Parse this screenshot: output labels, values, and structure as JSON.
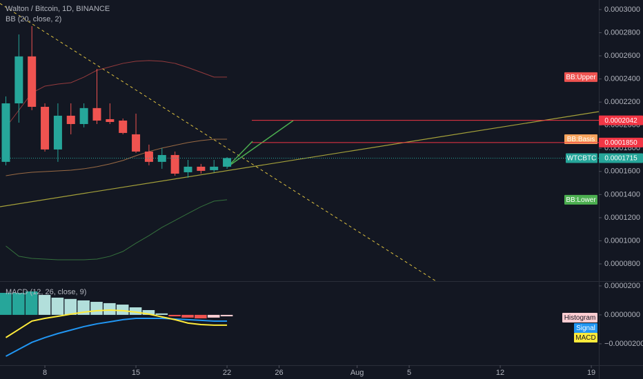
{
  "header": {
    "title": "Walton / Bitcoin, 1D, BINANCE",
    "bb_label": "BB (20, close, 2)",
    "macd_label": "MACD (12, 26, close, 9)"
  },
  "chart_data": [
    {
      "type": "candlestick",
      "x": [
        5,
        6,
        7,
        8,
        9,
        10,
        11,
        12,
        13,
        14,
        15,
        16,
        17,
        18,
        19,
        20,
        21,
        22
      ],
      "open": [
        0.0001683,
        0.0002189,
        0.0002595,
        0.0002159,
        0.000179,
        0.0002082,
        0.000201,
        0.0002148,
        0.0002052,
        0.000204,
        0.0001921,
        0.0001772,
        0.0001683,
        0.0001742,
        0.0001593,
        0.0001641,
        0.0001611,
        0.0001641
      ],
      "high": [
        0.0002249,
        0.0002785,
        0.0002857,
        0.0002189,
        0.0002189,
        0.0002189,
        0.0002189,
        0.0002487,
        0.0002189,
        0.0002058,
        0.00021,
        0.0001832,
        0.0001802,
        0.0001772,
        0.00017,
        0.0001665,
        0.00017,
        0.0001724
      ],
      "low": [
        0.0001653,
        0.0002022,
        0.000213,
        0.0001772,
        0.0001683,
        0.0001921,
        0.0001981,
        0.000201,
        0.000201,
        0.0001921,
        0.000176,
        0.0001653,
        0.0001623,
        0.0001563,
        0.0001546,
        0.0001581,
        0.0001593,
        0.0001623
      ],
      "close": [
        0.0002189,
        0.0002595,
        0.0002159,
        0.000179,
        0.0002082,
        0.000201,
        0.0002148,
        0.000204,
        0.0002028,
        0.0001933,
        0.0001772,
        0.0001683,
        0.0001742,
        0.0001581,
        0.0001641,
        0.0001605,
        0.0001641,
        0.0001715
      ],
      "up_color": "#26a69a",
      "down_color": "#ef5350",
      "series": [
        {
          "name": "BB:Upper",
          "color": "#ef5350",
          "values": [
            0.0001981,
            0.000213,
            0.0002279,
            0.0002338,
            0.0002356,
            0.0002368,
            0.0002416,
            0.0002475,
            0.0002505,
            0.0002535,
            0.0002553,
            0.0002559,
            0.0002553,
            0.0002535,
            0.0002499,
            0.0002458,
            0.0002416,
            0.0002416
          ]
        },
        {
          "name": "BB:Basis",
          "color": "#f7a35c",
          "values": [
            0.0001563,
            0.0001581,
            0.0001593,
            0.0001599,
            0.0001605,
            0.0001611,
            0.0001623,
            0.0001641,
            0.0001665,
            0.0001695,
            0.0001736,
            0.0001772,
            0.0001802,
            0.0001826,
            0.000185,
            0.0001867,
            0.0001879,
            0.0001879
          ]
        },
        {
          "name": "BB:Lower",
          "color": "#4caf50",
          "values": [
            9.55e-05,
            8.66e-05,
            8.48e-05,
            8.42e-05,
            8.36e-05,
            8.36e-05,
            8.36e-05,
            8.42e-05,
            8.66e-05,
            9.08e-05,
            9.79e-05,
            0.0001045,
            0.0001116,
            0.0001176,
            0.0001236,
            0.0001295,
            0.0001343,
            0.0001355
          ]
        }
      ],
      "last_price": {
        "name": "WTCBTC",
        "label": "0.0001715",
        "color": "#26a69a"
      },
      "price_lines": [
        {
          "value": 0.0002042,
          "label": "0.0002042",
          "color": "#f23645"
        },
        {
          "value": 0.000185,
          "label": "0.0001850",
          "color": "#f23645"
        }
      ],
      "xlim": [
        4.55,
        50.58
      ],
      "xticks": [
        8,
        15,
        22,
        26,
        {
          "value": 32,
          "label": "Aug"
        },
        {
          "value": 36,
          "label": "5"
        },
        {
          "value": 43,
          "label": "12"
        },
        {
          "value": 50,
          "label": "19"
        }
      ],
      "ylim": [
        6.51e-05,
        0.0003083
      ],
      "yticks": [
        {
          "value": 0.0003,
          "label": "0.0003000"
        },
        {
          "value": 0.00028,
          "label": "0.0002800"
        },
        {
          "value": 0.00026,
          "label": "0.0002600"
        },
        {
          "value": 0.00024,
          "label": "0.0002400"
        },
        {
          "value": 0.00022,
          "label": "0.0002200"
        },
        {
          "value": 0.0002,
          "label": "0.0002000"
        },
        {
          "value": 0.00018,
          "label": "0.0001800"
        },
        {
          "value": 0.00016,
          "label": "0.0001600"
        },
        {
          "value": 0.00014,
          "label": "0.0001400"
        },
        {
          "value": 0.00012,
          "label": "0.0001200"
        },
        {
          "value": 0.0001,
          "label": "0.0001000"
        },
        {
          "value": 8e-05,
          "label": "0.0000800"
        }
      ]
    },
    {
      "type": "macd",
      "histogram": {
        "name": "Histogram",
        "values": [
          1.52e-05,
          1.52e-05,
          1.62e-05,
          1.38e-05,
          1.19e-05,
          1.1e-05,
          1e-05,
          9e-06,
          8.1e-06,
          7.1e-06,
          5.2e-06,
          3.3e-06,
          1e-06,
          -1e-06,
          -1.9e-06,
          -2.4e-06,
          -1.9e-06,
          -1e-06
        ],
        "colors": [
          "#26a69a",
          "#26a69a",
          "#26a69a",
          "#b2dfdb",
          "#b2dfdb",
          "#b2dfdb",
          "#b2dfdb",
          "#b2dfdb",
          "#b2dfdb",
          "#b2dfdb",
          "#b2dfdb",
          "#b2dfdb",
          "#b2dfdb",
          "#ef5350",
          "#ef5350",
          "#ef5350",
          "#ffcdd2",
          "#ffcdd2"
        ]
      },
      "series": [
        {
          "name": "Signal",
          "color": "#2196f3",
          "values": [
            -2.86e-05,
            -2.38e-05,
            -1.9e-05,
            -1.57e-05,
            -1.29e-05,
            -1.05e-05,
            -8.1e-06,
            -6.2e-06,
            -4.8e-06,
            -3.3e-06,
            -2.4e-06,
            -2.4e-06,
            -2.4e-06,
            -2.9e-06,
            -3.3e-06,
            -3.8e-06,
            -4.3e-06,
            -4.3e-06
          ]
        },
        {
          "name": "MACD",
          "color": "#ffeb3b",
          "values": [
            -1.57e-05,
            -1e-05,
            -4.3e-06,
            -2.4e-06,
            -1e-06,
            5e-07,
            1.9e-06,
            2.9e-06,
            3.3e-06,
            2.9e-06,
            1.9e-06,
            5e-07,
            -1.4e-06,
            -3.3e-06,
            -5.7e-06,
            -6.7e-06,
            -7.1e-06,
            -7.1e-06
          ]
        }
      ],
      "ylim": [
        -3.48e-05,
        2.33e-05
      ],
      "yticks": [
        {
          "value": 2e-05,
          "label": "0.0000200"
        },
        {
          "value": 0,
          "label": "0.0000000"
        },
        {
          "value": -2e-05,
          "label": "−0.0000200"
        }
      ]
    }
  ]
}
